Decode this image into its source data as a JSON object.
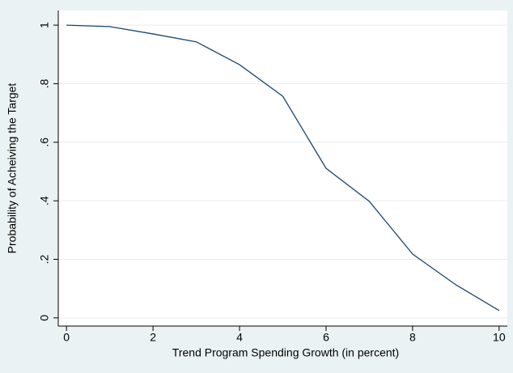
{
  "chart_data": {
    "type": "line",
    "x_label": "Trend Program Spending Growth (in percent)",
    "y_label": "Probability of Acheiving the Target",
    "series": [
      {
        "color": "#1a476f",
        "x": [
          0,
          1,
          2,
          3,
          4,
          5,
          6,
          7,
          8,
          9,
          10
        ],
        "values": [
          1.0,
          0.995,
          0.97,
          0.943,
          0.865,
          0.757,
          0.511,
          0.398,
          0.218,
          0.113,
          0.025
        ]
      }
    ],
    "xlim": [
      -0.19,
      10.19
    ],
    "xticks": [
      0,
      2,
      4,
      6,
      8,
      10
    ],
    "ylim": [
      -0.028,
      1.05
    ],
    "yticks": [
      0,
      {
        "value": 0.2,
        "label": ".2"
      },
      {
        "value": 0.4,
        "label": ".4"
      },
      {
        "value": 0.6,
        "label": ".6"
      },
      {
        "value": 0.8,
        "label": ".8"
      },
      1
    ],
    "grid": true
  }
}
